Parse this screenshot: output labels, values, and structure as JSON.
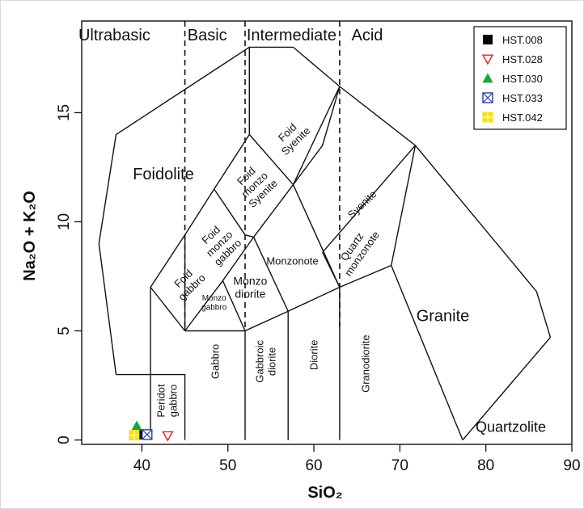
{
  "chart_data": {
    "type": "scatter",
    "xlabel": "SiO₂",
    "ylabel": "Na₂O + K₂O",
    "xlim": [
      33,
      90
    ],
    "ylim": [
      -0.2,
      19.2
    ],
    "xticks": [
      40,
      50,
      60,
      70,
      80,
      90
    ],
    "yticks": [
      0,
      5,
      10,
      15
    ],
    "grid": false,
    "legend_position": "top-right",
    "silica_zones": [
      {
        "label": "Ultrabasic"
      },
      {
        "label": "Basic"
      },
      {
        "label": "Intermediate"
      },
      {
        "label": "Acid"
      }
    ],
    "zone_boundaries": [
      45,
      52,
      63
    ],
    "fields": [
      {
        "name": "Foidolite",
        "lines": [
          "Foidolite"
        ],
        "polygon": [
          [
            41,
            3
          ],
          [
            45,
            3
          ],
          [
            45,
            5
          ],
          [
            45,
            9.4
          ],
          [
            48.4,
            11.5
          ],
          [
            52.5,
            14
          ],
          [
            52.5,
            18
          ],
          [
            57.6,
            18
          ],
          [
            63,
            16.2
          ],
          [
            71.8,
            13.5
          ],
          [
            63,
            16.2
          ],
          [
            52.5,
            18
          ],
          [
            37,
            14
          ],
          [
            35,
            9
          ],
          [
            37,
            3
          ],
          [
            41,
            3
          ]
        ]
      },
      {
        "name": "Foid Syenite",
        "lines": [
          "Foid",
          "Syenite"
        ]
      },
      {
        "name": "Foid monzo Syenite",
        "lines": [
          "Foid",
          "monzo",
          "Syenite"
        ]
      },
      {
        "name": "Foid monzo gabbro",
        "lines": [
          "Foid",
          "monzo",
          "gabbro"
        ]
      },
      {
        "name": "Syenite",
        "lines": [
          "Syenite"
        ]
      },
      {
        "name": "Foid gabbro",
        "lines": [
          "Foid",
          "gabbro"
        ]
      },
      {
        "name": "Monzonote",
        "lines": [
          "Monzonote"
        ]
      },
      {
        "name": "Quartz monzonote",
        "lines": [
          "Quartz",
          "monzonote"
        ]
      },
      {
        "name": "Monzo diorite",
        "lines": [
          "Monzo",
          "diorite"
        ]
      },
      {
        "name": "Monzo gabbro",
        "lines": [
          "Monzo",
          "gabbro"
        ]
      },
      {
        "name": "Granite",
        "lines": [
          "Granite"
        ]
      },
      {
        "name": "Peridot gabbro",
        "lines": [
          "Peridot",
          "gabbro"
        ]
      },
      {
        "name": "Gabbro",
        "lines": [
          "Gabbro"
        ]
      },
      {
        "name": "Gabbroic diorite",
        "lines": [
          "Gabbroic",
          "diorite"
        ]
      },
      {
        "name": "Diorite",
        "lines": [
          "Diorite"
        ]
      },
      {
        "name": "Granodiorite",
        "lines": [
          "Granodiorite"
        ]
      },
      {
        "name": "Quartzolite",
        "lines": [
          "Quartzolite"
        ]
      }
    ],
    "series": [
      {
        "name": "HST.008",
        "marker": "filled-square",
        "color": "#000000",
        "points": [
          [
            40.2,
            0.25
          ]
        ]
      },
      {
        "name": "HST.028",
        "marker": "open-triangle-down",
        "color": "#e02020",
        "points": [
          [
            43.0,
            0.2
          ]
        ]
      },
      {
        "name": "HST.030",
        "marker": "filled-triangle-up",
        "color": "#1aa63a",
        "points": [
          [
            39.4,
            0.65
          ]
        ]
      },
      {
        "name": "HST.033",
        "marker": "crossed-square",
        "color": "#2b3f9e",
        "points": [
          [
            40.6,
            0.25
          ]
        ]
      },
      {
        "name": "HST.042",
        "marker": "plus-square",
        "color": "#f2e21a",
        "points": [
          [
            39.1,
            0.22
          ]
        ]
      }
    ]
  }
}
